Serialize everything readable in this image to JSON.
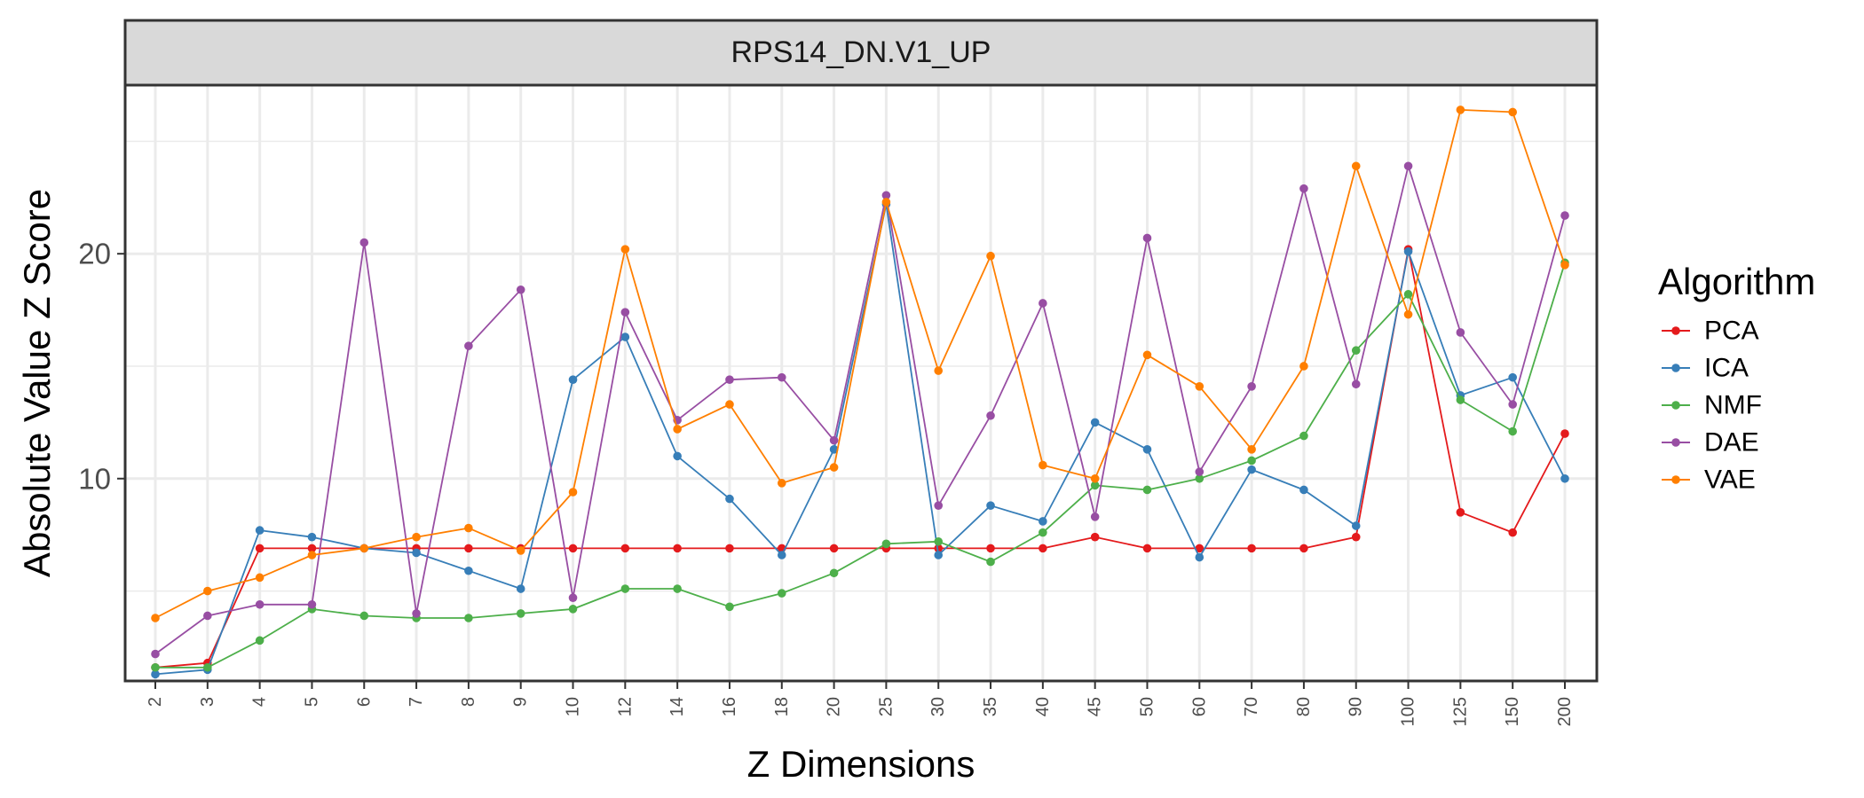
{
  "chart_data": {
    "type": "line",
    "facet_title": "RPS14_DN.V1_UP",
    "xlabel": "Z Dimensions",
    "ylabel": "Absolute Value Z Score",
    "x": [
      "2",
      "3",
      "4",
      "5",
      "6",
      "7",
      "8",
      "9",
      "10",
      "12",
      "14",
      "16",
      "18",
      "20",
      "25",
      "30",
      "35",
      "40",
      "45",
      "50",
      "60",
      "70",
      "80",
      "90",
      "100",
      "125",
      "150",
      "200"
    ],
    "ylim": [
      1.0,
      27.5
    ],
    "yticks": [
      10,
      20
    ],
    "grid": true,
    "legend_title": "Algorithm",
    "legend_position": "right",
    "series": [
      {
        "name": "PCA",
        "color": "#e41a1c",
        "values": [
          1.6,
          1.8,
          6.9,
          6.9,
          6.9,
          6.9,
          6.9,
          6.9,
          6.9,
          6.9,
          6.9,
          6.9,
          6.9,
          6.9,
          6.9,
          6.9,
          6.9,
          6.9,
          7.4,
          6.9,
          6.9,
          6.9,
          6.9,
          7.4,
          20.2,
          8.5,
          7.6,
          12.0
        ]
      },
      {
        "name": "ICA",
        "color": "#377eb8",
        "values": [
          1.3,
          1.5,
          7.7,
          7.4,
          6.9,
          6.7,
          5.9,
          5.1,
          14.4,
          16.3,
          11.0,
          9.1,
          6.6,
          11.3,
          22.2,
          6.6,
          8.8,
          8.1,
          12.5,
          11.3,
          6.5,
          10.4,
          9.5,
          7.9,
          20.1,
          13.7,
          14.5,
          10.0
        ]
      },
      {
        "name": "NMF",
        "color": "#4daf4a",
        "values": [
          1.6,
          1.6,
          2.8,
          4.2,
          3.9,
          3.8,
          3.8,
          4.0,
          4.2,
          5.1,
          5.1,
          4.3,
          4.9,
          5.8,
          7.1,
          7.2,
          6.3,
          7.6,
          9.7,
          9.5,
          10.0,
          10.8,
          11.9,
          15.7,
          18.2,
          13.5,
          12.1,
          19.6
        ]
      },
      {
        "name": "DAE",
        "color": "#984ea3",
        "values": [
          2.2,
          3.9,
          4.4,
          4.4,
          20.5,
          4.0,
          15.9,
          18.4,
          4.7,
          17.4,
          12.6,
          14.4,
          14.5,
          11.7,
          22.6,
          8.8,
          12.8,
          17.8,
          8.3,
          20.7,
          10.3,
          14.1,
          22.9,
          14.2,
          23.9,
          16.5,
          13.3,
          21.7
        ]
      },
      {
        "name": "VAE",
        "color": "#ff7f00",
        "values": [
          3.8,
          5.0,
          5.6,
          6.6,
          6.9,
          7.4,
          7.8,
          6.8,
          9.4,
          20.2,
          12.2,
          13.3,
          9.8,
          10.5,
          22.3,
          14.8,
          19.9,
          10.6,
          10.0,
          15.5,
          14.1,
          11.3,
          15.0,
          23.9,
          17.3,
          26.4,
          26.3,
          19.5
        ]
      }
    ]
  }
}
